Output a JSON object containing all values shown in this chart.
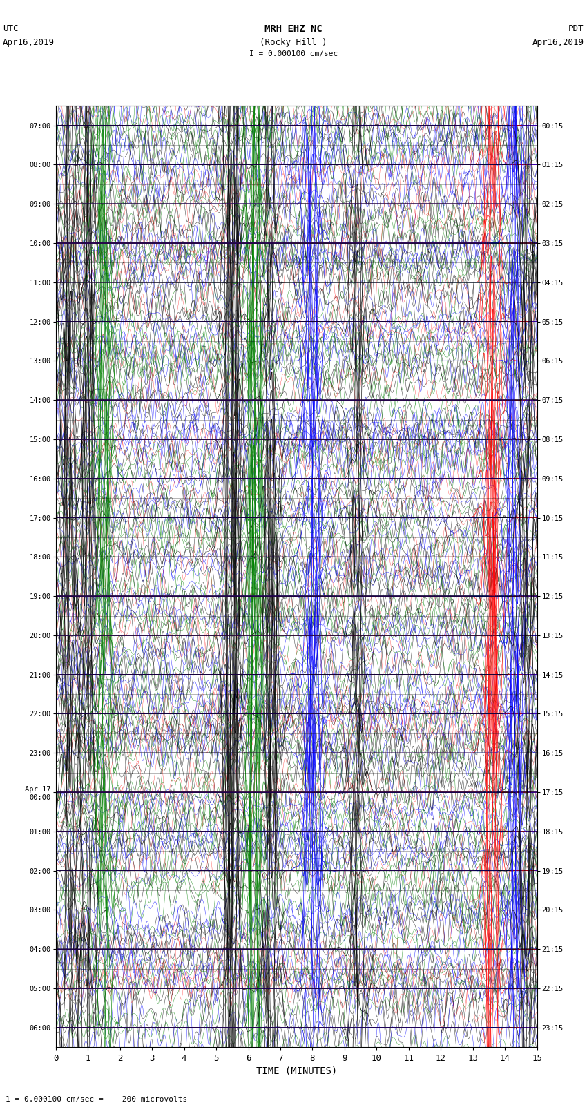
{
  "title_line1": "MRH EHZ NC",
  "title_line2": "(Rocky Hill )",
  "title_scale": "I = 0.000100 cm/sec",
  "left_header": "UTC",
  "left_date": "Apr16,2019",
  "right_header": "PDT",
  "right_date": "Apr16,2019",
  "xlabel": "TIME (MINUTES)",
  "footnote": "1 = 0.000100 cm/sec =    200 microvolts",
  "left_times": [
    "07:00",
    "08:00",
    "09:00",
    "10:00",
    "11:00",
    "12:00",
    "13:00",
    "14:00",
    "15:00",
    "16:00",
    "17:00",
    "18:00",
    "19:00",
    "20:00",
    "21:00",
    "22:00",
    "23:00",
    "Apr 17\n00:00",
    "01:00",
    "02:00",
    "03:00",
    "04:00",
    "05:00",
    "06:00"
  ],
  "right_times": [
    "00:15",
    "01:15",
    "02:15",
    "03:15",
    "04:15",
    "05:15",
    "06:15",
    "07:15",
    "08:15",
    "09:15",
    "10:15",
    "11:15",
    "12:15",
    "13:15",
    "14:15",
    "15:15",
    "16:15",
    "17:15",
    "18:15",
    "19:15",
    "20:15",
    "21:15",
    "22:15",
    "23:15"
  ],
  "xlim": [
    0,
    15
  ],
  "ylim": [
    0,
    24
  ],
  "xticks": [
    0,
    1,
    2,
    3,
    4,
    5,
    6,
    7,
    8,
    9,
    10,
    11,
    12,
    13,
    14,
    15
  ],
  "bg_color": "white",
  "num_traces": 24,
  "minutes_per_trace": 15,
  "seed": 42
}
